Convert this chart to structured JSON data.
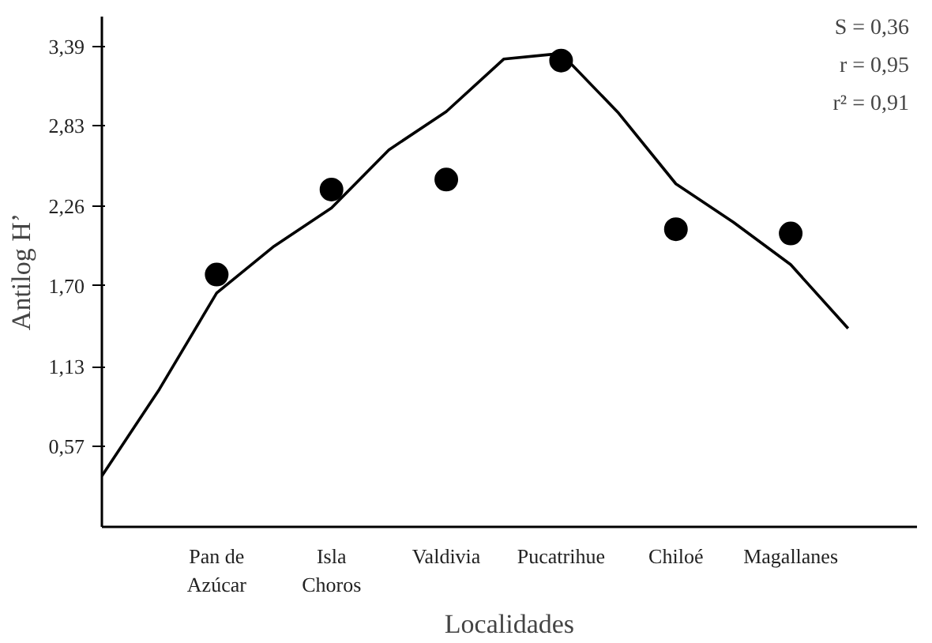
{
  "chart_data": {
    "type": "scatter",
    "xlabel": "Localidades",
    "ylabel": "Antilog H’",
    "categories": [
      null,
      null,
      "Pan de\nAzúcar",
      null,
      "Isla\nChoros",
      null,
      "Valdivia",
      null,
      "Pucatrihue",
      null,
      "Chiloé",
      null,
      "Magallanes",
      null
    ],
    "series": [
      {
        "color": "#000000",
        "marker": "circle",
        "values": [
          null,
          null,
          1.78,
          null,
          2.38,
          null,
          2.45,
          null,
          3.29,
          null,
          2.1,
          null,
          2.07,
          null
        ]
      },
      {
        "type": "line",
        "color": "#000000",
        "line_style": "solid",
        "values": [
          0.36,
          0.97,
          1.65,
          1.98,
          2.25,
          2.66,
          2.93,
          3.3,
          3.34,
          2.92,
          2.42,
          2.15,
          1.85,
          1.4
        ]
      }
    ],
    "ylim": [
      0,
      3.6
    ],
    "yticks": [
      {
        "value": 0.57,
        "label": "0,57"
      },
      {
        "value": 1.13,
        "label": "1,13"
      },
      {
        "value": 1.7,
        "label": "1,70"
      },
      {
        "value": 2.26,
        "label": "2,26"
      },
      {
        "value": 2.83,
        "label": "2,83"
      },
      {
        "value": 3.39,
        "label": "3,39"
      }
    ],
    "annotations": [
      "S = 0,36",
      "r = 0,95",
      "r² = 0,91"
    ],
    "grid": false
  }
}
